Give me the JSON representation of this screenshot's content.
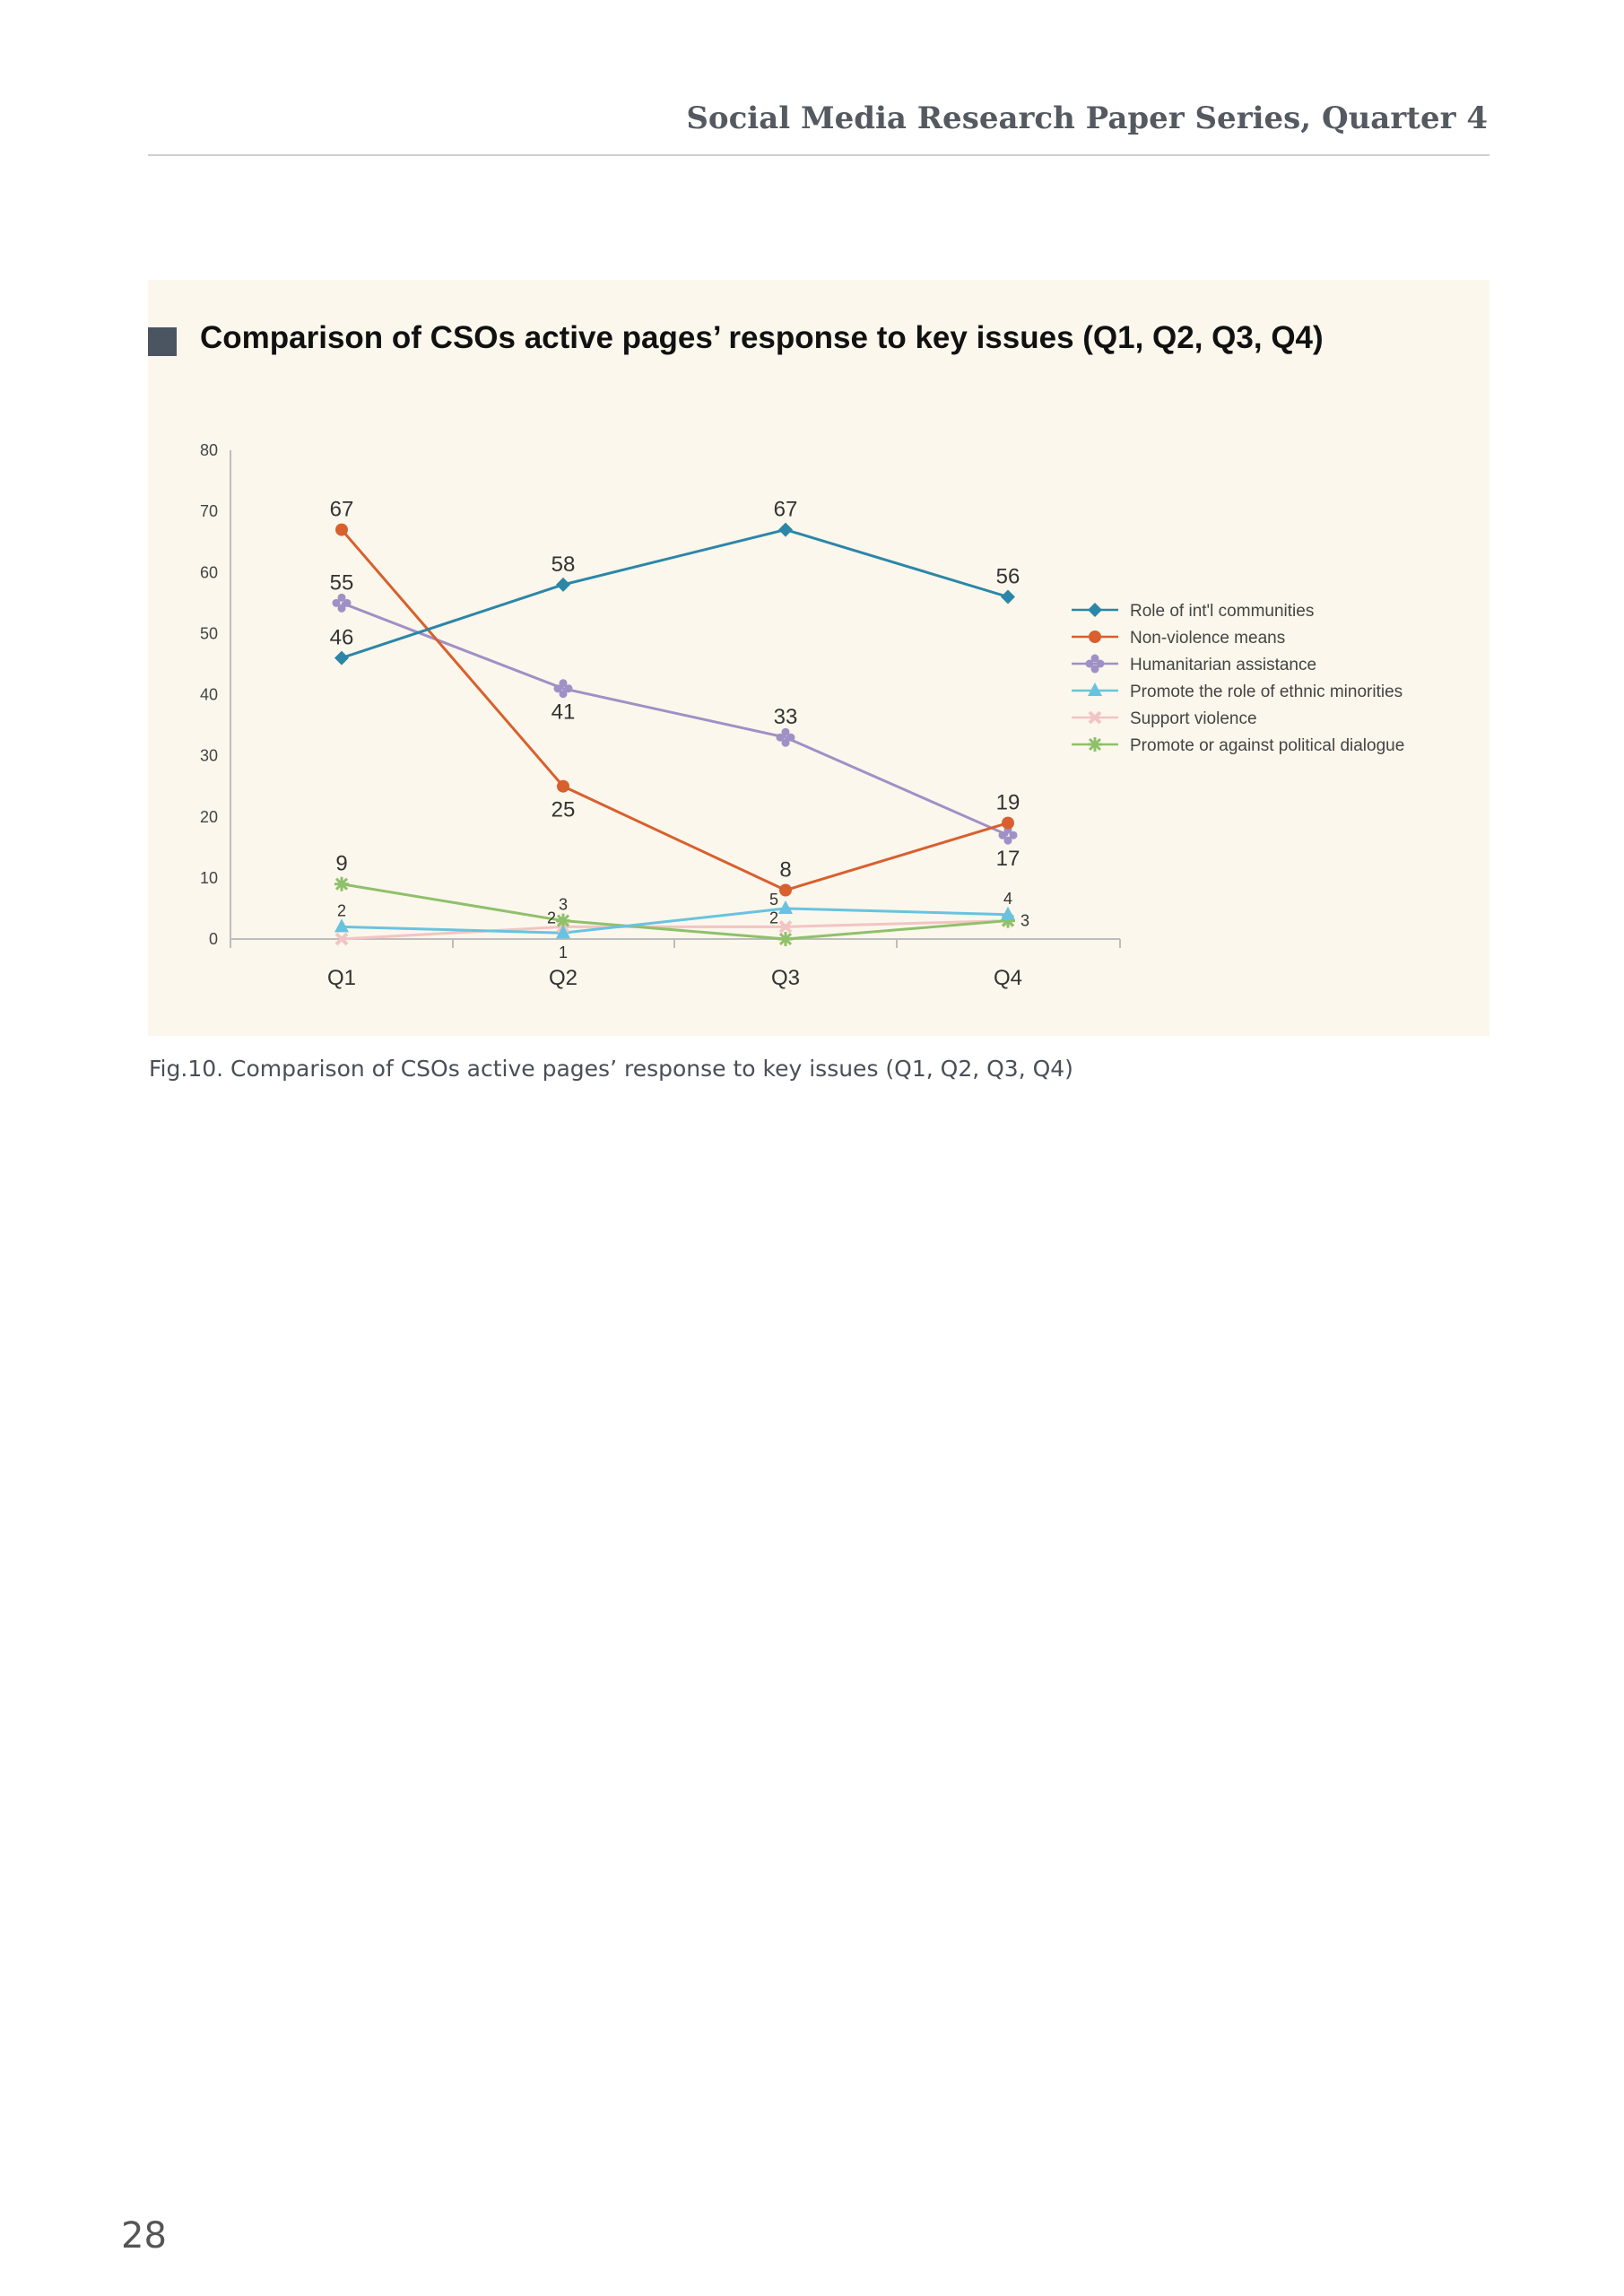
{
  "header": {
    "title": "Social Media Research Paper Series, Quarter 4"
  },
  "figure": {
    "title": "Comparison of CSOs active pages’ response to key issues (Q1, Q2, Q3, Q4)",
    "caption": "Fig.10. Comparison of CSOs active pages’ response to key issues (Q1, Q2, Q3, Q4)"
  },
  "page_number": "28",
  "chart_data": {
    "type": "line",
    "categories": [
      "Q1",
      "Q2",
      "Q3",
      "Q4"
    ],
    "ylim": [
      0,
      80
    ],
    "yticks": [
      0,
      10,
      20,
      30,
      40,
      50,
      60,
      70,
      80
    ],
    "grid": false,
    "legend_position": "right",
    "series": [
      {
        "name": "Role of int'l communities",
        "values": [
          46,
          58,
          67,
          56
        ],
        "color": "#2c86a8",
        "marker": "diamond"
      },
      {
        "name": "Non-violence means",
        "values": [
          67,
          25,
          8,
          19
        ],
        "color": "#d95f2e",
        "marker": "circle"
      },
      {
        "name": "Humanitarian assistance",
        "values": [
          55,
          41,
          33,
          17
        ],
        "color": "#9f90c6",
        "marker": "clover"
      },
      {
        "name": "Promote the role of ethnic minorities",
        "values": [
          2,
          1,
          5,
          4
        ],
        "color": "#68c3e0",
        "marker": "triangle"
      },
      {
        "name": "Support violence",
        "values": [
          0,
          2,
          2,
          3
        ],
        "color": "#f3c4c4",
        "marker": "x"
      },
      {
        "name": "Promote or against political dialogue",
        "values": [
          9,
          3,
          0,
          3
        ],
        "color": "#8fc06a",
        "marker": "star"
      }
    ],
    "data_labels": [
      {
        "series": 0,
        "point": 0,
        "text": "46",
        "pos": "above"
      },
      {
        "series": 0,
        "point": 1,
        "text": "58",
        "pos": "above"
      },
      {
        "series": 0,
        "point": 2,
        "text": "67",
        "pos": "above"
      },
      {
        "series": 0,
        "point": 3,
        "text": "56",
        "pos": "above"
      },
      {
        "series": 1,
        "point": 0,
        "text": "67",
        "pos": "above"
      },
      {
        "series": 1,
        "point": 1,
        "text": "25",
        "pos": "below"
      },
      {
        "series": 1,
        "point": 2,
        "text": "8",
        "pos": "above"
      },
      {
        "series": 1,
        "point": 3,
        "text": "19",
        "pos": "above"
      },
      {
        "series": 2,
        "point": 0,
        "text": "55",
        "pos": "above"
      },
      {
        "series": 2,
        "point": 1,
        "text": "41",
        "pos": "below"
      },
      {
        "series": 2,
        "point": 2,
        "text": "33",
        "pos": "above"
      },
      {
        "series": 2,
        "point": 3,
        "text": "17",
        "pos": "below"
      },
      {
        "series": 3,
        "point": 0,
        "text": "2",
        "pos": "above-small"
      },
      {
        "series": 3,
        "point": 1,
        "text": "1",
        "pos": "below-small"
      },
      {
        "series": 3,
        "point": 2,
        "text": "5",
        "pos": "left-small"
      },
      {
        "series": 3,
        "point": 3,
        "text": "4",
        "pos": "above-small"
      },
      {
        "series": 4,
        "point": 1,
        "text": "2",
        "pos": "left-small"
      },
      {
        "series": 4,
        "point": 2,
        "text": "2",
        "pos": "left-small"
      },
      {
        "series": 5,
        "point": 0,
        "text": "9",
        "pos": "above"
      },
      {
        "series": 5,
        "point": 1,
        "text": "3",
        "pos": "above-small"
      },
      {
        "series": 5,
        "point": 3,
        "text": "3",
        "pos": "right-small"
      }
    ]
  }
}
